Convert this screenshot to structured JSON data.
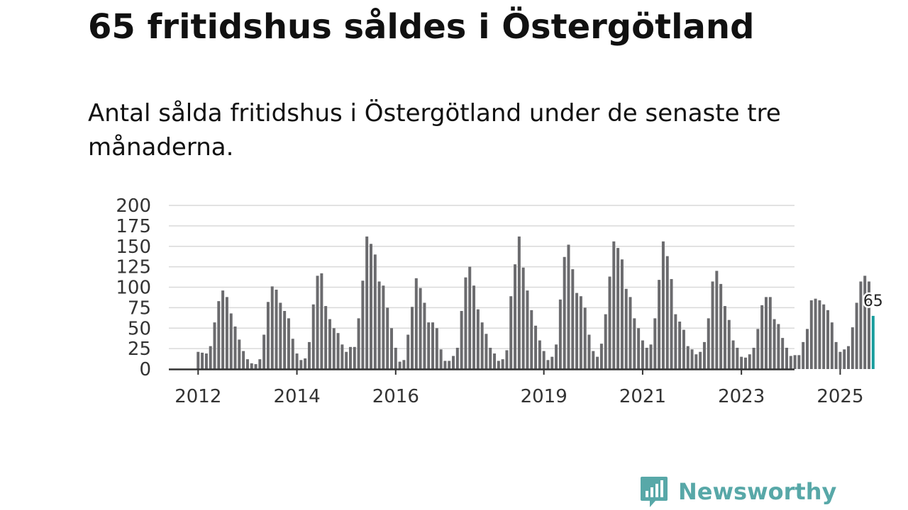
{
  "header": {
    "title": "65 fritidshus såldes i Östergötland",
    "subtitle": "Antal sålda fritidshus i Östergötland under de senaste tre månaderna."
  },
  "branding": {
    "logo_text": "Newsworthy",
    "logo_icon": "bar-chart-speech-bubble-icon",
    "color": "#58a8a8"
  },
  "colors": {
    "bar": "#6b6b6e",
    "highlight": "#1a9e9e",
    "grid": "#d9d9d9",
    "axis": "#333333"
  },
  "chart_data": {
    "type": "bar",
    "title": "65 fritidshus såldes i Östergötland",
    "subtitle": "Antal sålda fritidshus i Östergötland under de senaste tre månaderna.",
    "xlabel": "",
    "ylabel": "",
    "ylim": [
      0,
      200
    ],
    "yticks": [
      0,
      25,
      50,
      75,
      100,
      125,
      150,
      175,
      200
    ],
    "xtick_labels": [
      "2012",
      "2014",
      "2016",
      "2019",
      "2021",
      "2023",
      "2025"
    ],
    "xtick_month_index": [
      0,
      24,
      48,
      84,
      108,
      132,
      156
    ],
    "start": "2012-01",
    "grid": true,
    "highlight_last": true,
    "last_label": "65",
    "values": [
      21,
      20,
      19,
      28,
      57,
      83,
      96,
      88,
      68,
      52,
      36,
      22,
      12,
      7,
      6,
      12,
      42,
      82,
      101,
      97,
      81,
      71,
      62,
      37,
      19,
      11,
      13,
      33,
      79,
      114,
      117,
      77,
      61,
      50,
      44,
      30,
      21,
      27,
      27,
      62,
      108,
      162,
      153,
      140,
      107,
      102,
      75,
      50,
      26,
      9,
      11,
      42,
      76,
      111,
      99,
      81,
      57,
      57,
      50,
      24,
      10,
      10,
      16,
      26,
      71,
      112,
      125,
      102,
      73,
      57,
      43,
      26,
      19,
      10,
      12,
      23,
      89,
      128,
      162,
      124,
      96,
      72,
      53,
      35,
      22,
      11,
      15,
      30,
      85,
      137,
      152,
      122,
      93,
      89,
      75,
      42,
      22,
      15,
      31,
      67,
      113,
      156,
      148,
      134,
      98,
      88,
      62,
      50,
      35,
      26,
      30,
      62,
      109,
      156,
      138,
      110,
      67,
      58,
      48,
      28,
      24,
      18,
      21,
      33,
      62,
      107,
      120,
      104,
      77,
      60,
      35,
      26,
      15,
      14,
      18,
      26,
      49,
      78,
      88,
      88,
      61,
      55,
      38,
      26,
      16,
      17,
      17,
      33,
      49,
      84,
      86,
      84,
      79,
      72,
      57,
      33,
      21,
      24,
      28,
      51,
      81,
      107,
      114,
      107,
      65
    ]
  }
}
